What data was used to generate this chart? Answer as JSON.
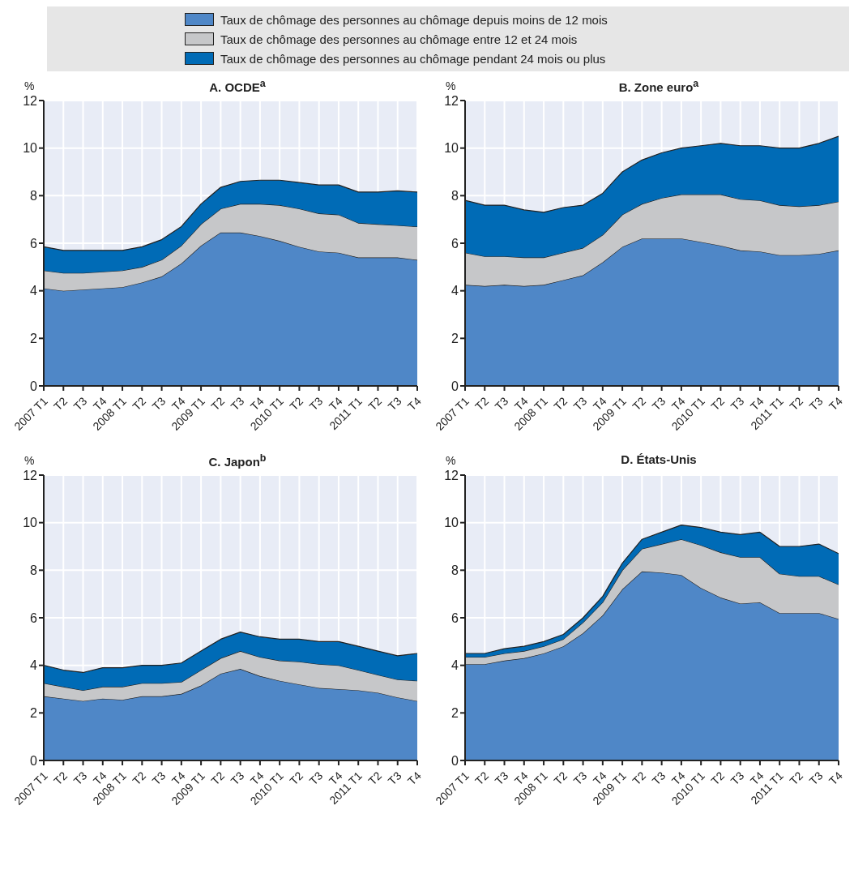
{
  "chart_data": [
    {
      "type": "area",
      "title": "A. OCDE$^{a}$",
      "ylabel": "%",
      "stacked": true,
      "legend": "top",
      "grid": true,
      "categories": [
        "2007 T1",
        "T2",
        "T3",
        "T4",
        "2008 T1",
        "T2",
        "T3",
        "T4",
        "2009 T1",
        "T2",
        "T3",
        "T4",
        "2010 T1",
        "T2",
        "T3",
        "T4",
        "2011 T1",
        "T2",
        "T3",
        "T4"
      ],
      "ylim": [
        0,
        12
      ],
      "yticks": [
        0,
        2,
        4,
        6,
        8,
        10,
        12
      ],
      "series": [
        {
          "name": "Taux de chômage des personnes au chômage depuis moins de 12 mois",
          "color": "#4f87c7",
          "values": [
            4.1,
            4.0,
            4.05,
            4.1,
            4.15,
            4.35,
            4.6,
            5.15,
            5.9,
            6.45,
            6.45,
            6.3,
            6.1,
            5.85,
            5.65,
            5.6,
            5.4,
            5.4,
            5.4,
            5.3
          ]
        },
        {
          "name": "Taux de chômage des personnes au chômage entre 12 et 24 mois",
          "color": "#c6c7c9",
          "values": [
            0.75,
            0.75,
            0.7,
            0.7,
            0.7,
            0.65,
            0.7,
            0.75,
            0.9,
            1.0,
            1.2,
            1.35,
            1.5,
            1.6,
            1.6,
            1.6,
            1.45,
            1.4,
            1.35,
            1.4
          ]
        },
        {
          "name": "Taux de chômage des personnes au chômage pendant 24 mois ou plus",
          "color": "#006bb6",
          "values": [
            1.0,
            0.95,
            0.95,
            0.9,
            0.85,
            0.85,
            0.85,
            0.8,
            0.85,
            0.9,
            0.95,
            1.0,
            1.05,
            1.1,
            1.2,
            1.25,
            1.3,
            1.35,
            1.45,
            1.45
          ]
        }
      ]
    },
    {
      "type": "area",
      "title": "B. Zone euro$^{a}$",
      "ylabel": "%",
      "stacked": true,
      "grid": true,
      "categories": [
        "2007 T1",
        "T2",
        "T3",
        "T4",
        "2008 T1",
        "T2",
        "T3",
        "T4",
        "2009 T1",
        "T2",
        "T3",
        "T4",
        "2010 T1",
        "T2",
        "T3",
        "T4",
        "2011 T1",
        "T2",
        "T3",
        "T4"
      ],
      "ylim": [
        0,
        12
      ],
      "yticks": [
        0,
        2,
        4,
        6,
        8,
        10,
        12
      ],
      "series": [
        {
          "color": "#4f87c7",
          "values": [
            4.25,
            4.2,
            4.25,
            4.2,
            4.25,
            4.45,
            4.65,
            5.2,
            5.85,
            6.2,
            6.2,
            6.2,
            6.05,
            5.9,
            5.7,
            5.65,
            5.5,
            5.5,
            5.55,
            5.7
          ]
        },
        {
          "color": "#c6c7c9",
          "values": [
            1.35,
            1.25,
            1.2,
            1.2,
            1.15,
            1.15,
            1.15,
            1.15,
            1.35,
            1.45,
            1.7,
            1.85,
            2.0,
            2.15,
            2.15,
            2.15,
            2.1,
            2.05,
            2.05,
            2.05
          ]
        },
        {
          "color": "#006bb6",
          "values": [
            2.2,
            2.15,
            2.15,
            2.0,
            1.9,
            1.9,
            1.8,
            1.75,
            1.8,
            1.85,
            1.9,
            1.95,
            2.05,
            2.15,
            2.25,
            2.3,
            2.4,
            2.45,
            2.6,
            2.75
          ]
        }
      ]
    },
    {
      "type": "area",
      "title": "C. Japon$^{b}$",
      "ylabel": "%",
      "stacked": true,
      "grid": true,
      "categories": [
        "2007 T1",
        "T2",
        "T3",
        "T4",
        "2008 T1",
        "T2",
        "T3",
        "T4",
        "2009 T1",
        "T2",
        "T3",
        "T4",
        "2010 T1",
        "T2",
        "T3",
        "T4",
        "2011 T1",
        "T2",
        "T3",
        "T4"
      ],
      "ylim": [
        0,
        12
      ],
      "yticks": [
        0,
        2,
        4,
        6,
        8,
        10,
        12
      ],
      "series": [
        {
          "color": "#4f87c7",
          "values": [
            2.7,
            2.6,
            2.5,
            2.6,
            2.55,
            2.7,
            2.7,
            2.8,
            3.15,
            3.65,
            3.85,
            3.55,
            3.35,
            3.2,
            3.05,
            3.0,
            2.95,
            2.85,
            2.65,
            2.5
          ]
        },
        {
          "color": "#c6c7c9",
          "values": [
            0.55,
            0.5,
            0.45,
            0.5,
            0.55,
            0.55,
            0.55,
            0.5,
            0.65,
            0.65,
            0.75,
            0.8,
            0.85,
            0.95,
            1.0,
            1.0,
            0.85,
            0.75,
            0.75,
            0.85
          ]
        },
        {
          "color": "#006bb6",
          "values": [
            0.75,
            0.7,
            0.75,
            0.8,
            0.8,
            0.75,
            0.75,
            0.8,
            0.8,
            0.8,
            0.8,
            0.85,
            0.9,
            0.95,
            0.95,
            1.0,
            1.0,
            1.0,
            1.0,
            1.15
          ]
        }
      ]
    },
    {
      "type": "area",
      "title": "D. États-Unis",
      "ylabel": "%",
      "stacked": true,
      "grid": true,
      "categories": [
        "2007 T1",
        "T2",
        "T3",
        "T4",
        "2008 T1",
        "T2",
        "T3",
        "T4",
        "2009 T1",
        "T2",
        "T3",
        "T4",
        "2010 T1",
        "T2",
        "T3",
        "T4",
        "2011 T1",
        "T2",
        "T3",
        "T4"
      ],
      "ylim": [
        0,
        12
      ],
      "yticks": [
        0,
        2,
        4,
        6,
        8,
        10,
        12
      ],
      "series": [
        {
          "color": "#4f87c7",
          "values": [
            4.05,
            4.05,
            4.2,
            4.3,
            4.5,
            4.8,
            5.35,
            6.1,
            7.2,
            7.95,
            7.9,
            7.8,
            7.25,
            6.85,
            6.6,
            6.65,
            6.2,
            6.2,
            6.2,
            5.95
          ]
        },
        {
          "color": "#c6c7c9",
          "values": [
            0.3,
            0.3,
            0.3,
            0.3,
            0.3,
            0.3,
            0.45,
            0.55,
            0.8,
            0.95,
            1.2,
            1.5,
            1.8,
            1.9,
            1.95,
            1.9,
            1.65,
            1.55,
            1.55,
            1.45
          ]
        },
        {
          "color": "#006bb6",
          "values": [
            0.15,
            0.15,
            0.2,
            0.2,
            0.2,
            0.2,
            0.2,
            0.25,
            0.3,
            0.4,
            0.5,
            0.6,
            0.75,
            0.85,
            0.95,
            1.05,
            1.15,
            1.25,
            1.35,
            1.3
          ]
        }
      ]
    }
  ]
}
